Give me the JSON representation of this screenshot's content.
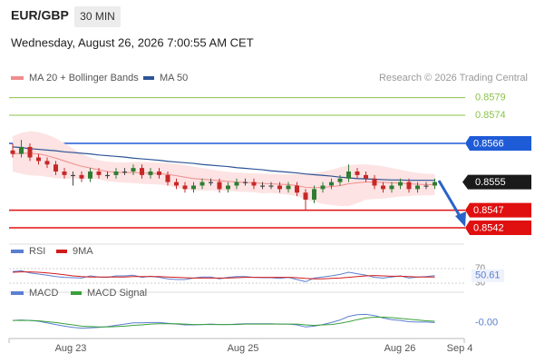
{
  "header": {
    "symbol": "EUR/GBP",
    "timeframe": "30 MIN",
    "timestamp": "Wednesday, August 26, 2026 7:00:55 AM CET",
    "source": "Research © 2026 Trading Central"
  },
  "x_labels": [
    "Aug 23",
    "Aug 25",
    "Aug 26",
    "Sep 4"
  ],
  "chart_data": [
    {
      "type": "candlestick",
      "ylim": [
        0.8538,
        0.8582
      ],
      "up_color": "#2e7d32",
      "down_color": "#c62828",
      "candles": {
        "open": [
          0.8564,
          0.8563,
          0.8565,
          0.8562,
          0.8561,
          0.856,
          0.8558,
          0.8557,
          0.8557,
          0.8556,
          0.8558,
          0.8557,
          0.8557,
          0.8558,
          0.8558,
          0.8559,
          0.8557,
          0.8558,
          0.8557,
          0.8555,
          0.8554,
          0.8553,
          0.8554,
          0.8555,
          0.8555,
          0.8553,
          0.8554,
          0.8555,
          0.8555,
          0.8554,
          0.8554,
          0.8554,
          0.8553,
          0.8554,
          0.8552,
          0.855,
          0.8553,
          0.8554,
          0.8555,
          0.8556,
          0.8558,
          0.8557,
          0.8556,
          0.8554,
          0.8553,
          0.8554,
          0.8555,
          0.8553,
          0.8554,
          0.8554
        ],
        "high": [
          0.8566,
          0.8567,
          0.8566,
          0.8563,
          0.8562,
          0.8561,
          0.8559,
          0.8558,
          0.8558,
          0.8559,
          0.8559,
          0.8558,
          0.8559,
          0.8559,
          0.856,
          0.856,
          0.8559,
          0.8559,
          0.8558,
          0.8556,
          0.8555,
          0.8555,
          0.8556,
          0.8556,
          0.8556,
          0.8555,
          0.8556,
          0.8556,
          0.8556,
          0.8555,
          0.8555,
          0.8555,
          0.8555,
          0.8555,
          0.8553,
          0.8554,
          0.8555,
          0.8556,
          0.8557,
          0.856,
          0.8559,
          0.8558,
          0.8557,
          0.8555,
          0.8555,
          0.8556,
          0.8556,
          0.8555,
          0.8555,
          0.8556
        ],
        "low": [
          0.8562,
          0.8562,
          0.8561,
          0.856,
          0.8559,
          0.8557,
          0.8556,
          0.8554,
          0.8555,
          0.8555,
          0.8556,
          0.8556,
          0.8556,
          0.8557,
          0.8557,
          0.8556,
          0.8556,
          0.8556,
          0.8554,
          0.8553,
          0.8552,
          0.8552,
          0.8553,
          0.8554,
          0.8552,
          0.8552,
          0.8553,
          0.8554,
          0.8553,
          0.8553,
          0.8553,
          0.8552,
          0.8552,
          0.8551,
          0.8547,
          0.8549,
          0.8552,
          0.8553,
          0.8554,
          0.8555,
          0.8556,
          0.8555,
          0.8553,
          0.8552,
          0.8552,
          0.8553,
          0.8552,
          0.8552,
          0.8553,
          0.8553
        ],
        "close": [
          0.8563,
          0.8565,
          0.8562,
          0.8561,
          0.856,
          0.8558,
          0.8557,
          0.8557,
          0.8556,
          0.8558,
          0.8557,
          0.8557,
          0.8558,
          0.8558,
          0.8559,
          0.8557,
          0.8558,
          0.8557,
          0.8555,
          0.8554,
          0.8553,
          0.8554,
          0.8555,
          0.8555,
          0.8553,
          0.8554,
          0.8555,
          0.8555,
          0.8554,
          0.8554,
          0.8554,
          0.8553,
          0.8554,
          0.8552,
          0.855,
          0.8553,
          0.8554,
          0.8555,
          0.8556,
          0.8558,
          0.8557,
          0.8556,
          0.8554,
          0.8553,
          0.8554,
          0.8555,
          0.8553,
          0.8554,
          0.8554,
          0.8555
        ]
      },
      "overlays": [
        {
          "name": "MA 20 + Bollinger Bands",
          "color": "#f08c8c",
          "band_color": "#fde3e3",
          "values": [
            0.8563,
            0.85632,
            0.85632,
            0.8563,
            0.85625,
            0.85618,
            0.8561,
            0.85602,
            0.85595,
            0.8559,
            0.85585,
            0.8558,
            0.85578,
            0.85577,
            0.85577,
            0.85576,
            0.85575,
            0.85574,
            0.85572,
            0.85568,
            0.85564,
            0.8556,
            0.85558,
            0.85556,
            0.85554,
            0.85552,
            0.8555,
            0.85549,
            0.85548,
            0.85546,
            0.85545,
            0.85544,
            0.85543,
            0.8554,
            0.85535,
            0.85534,
            0.85535,
            0.85537,
            0.8554,
            0.85545,
            0.85548,
            0.8555,
            0.8555,
            0.85549,
            0.85548,
            0.85547,
            0.85545,
            0.85544,
            0.85543,
            0.85543
          ],
          "upper": [
            0.8568,
            0.8569,
            0.85695,
            0.85692,
            0.85685,
            0.85675,
            0.8566,
            0.85645,
            0.8563,
            0.8562,
            0.85612,
            0.85608,
            0.85606,
            0.85606,
            0.85607,
            0.85607,
            0.85606,
            0.85605,
            0.85604,
            0.85602,
            0.85598,
            0.85594,
            0.8559,
            0.85586,
            0.85582,
            0.85579,
            0.85577,
            0.85576,
            0.85575,
            0.85574,
            0.85573,
            0.85572,
            0.85572,
            0.85573,
            0.85574,
            0.85576,
            0.8558,
            0.85585,
            0.85592,
            0.85598,
            0.856,
            0.856,
            0.85598,
            0.85595,
            0.8559,
            0.85585,
            0.8558,
            0.85576,
            0.85574,
            0.85573
          ],
          "lower": [
            0.8558,
            0.85574,
            0.85569,
            0.85568,
            0.85565,
            0.85561,
            0.8556,
            0.85559,
            0.8556,
            0.8556,
            0.85558,
            0.85552,
            0.8555,
            0.85548,
            0.85547,
            0.85545,
            0.85544,
            0.85543,
            0.8554,
            0.85534,
            0.8553,
            0.85526,
            0.85526,
            0.85526,
            0.85526,
            0.85525,
            0.85523,
            0.85522,
            0.85521,
            0.85518,
            0.85519,
            0.85516,
            0.85514,
            0.8551,
            0.855,
            0.85494,
            0.85488,
            0.85485,
            0.85482,
            0.85482,
            0.8549,
            0.855,
            0.85502,
            0.85503,
            0.85506,
            0.85509,
            0.8551,
            0.85512,
            0.85512,
            0.85513
          ]
        },
        {
          "name": "MA 50",
          "color": "#2d5596",
          "values": [
            0.8565,
            0.85648,
            0.85645,
            0.85643,
            0.85641,
            0.85639,
            0.85636,
            0.85634,
            0.85632,
            0.8563,
            0.85627,
            0.85625,
            0.85623,
            0.85621,
            0.85618,
            0.85616,
            0.85614,
            0.85612,
            0.85609,
            0.85607,
            0.85605,
            0.85603,
            0.856,
            0.85598,
            0.85596,
            0.85594,
            0.85591,
            0.85589,
            0.85587,
            0.85585,
            0.85582,
            0.8558,
            0.85578,
            0.85576,
            0.85573,
            0.85571,
            0.85569,
            0.85567,
            0.85564,
            0.85562,
            0.8556,
            0.85559,
            0.85558,
            0.85557,
            0.85556,
            0.85556,
            0.85555,
            0.85555,
            0.85555,
            0.85555
          ]
        }
      ],
      "levels": [
        {
          "value": 0.8579,
          "color": "#8bc34a",
          "label_style": "text"
        },
        {
          "value": 0.8574,
          "color": "#8bc34a",
          "label_style": "text"
        },
        {
          "value": 0.8566,
          "color": "#1e5bd7",
          "label_style": "box"
        },
        {
          "value": 0.8547,
          "color": "#e01010",
          "label_style": "box"
        },
        {
          "value": 0.8542,
          "color": "#e01010",
          "label_style": "box"
        }
      ],
      "current_color": "#1a1a1a"
    },
    {
      "type": "line",
      "ylim": [
        15,
        85
      ],
      "yticks": [
        70,
        30
      ],
      "series": [
        {
          "name": "RSI",
          "color": "#5b7fd0",
          "values": [
            62,
            64,
            58,
            55,
            52,
            48,
            46,
            45,
            44,
            50,
            47,
            46,
            50,
            50,
            52,
            46,
            49,
            46,
            42,
            40,
            40,
            44,
            47,
            47,
            42,
            46,
            48,
            48,
            46,
            45,
            45,
            43,
            46,
            40,
            34,
            44,
            47,
            50,
            54,
            60,
            56,
            52,
            46,
            44,
            47,
            50,
            44,
            47,
            48,
            50.61
          ]
        },
        {
          "name": "9MA",
          "color": "#d01c1c",
          "values": [
            60,
            61,
            61,
            60,
            58,
            56,
            53,
            50,
            48,
            47,
            47,
            47,
            47,
            47,
            48,
            48,
            48,
            48,
            47,
            46,
            45,
            44,
            44,
            44,
            44,
            44,
            45,
            46,
            46,
            46,
            46,
            46,
            46,
            45,
            43,
            42,
            42,
            43,
            44,
            46,
            48,
            50,
            51,
            50,
            49,
            49,
            48,
            47,
            47,
            47
          ]
        }
      ]
    },
    {
      "type": "line",
      "ylim": [
        -0.0004,
        0.0004
      ],
      "series": [
        {
          "name": "MACD",
          "color": "#5b7fd0",
          "values": [
            2e-05,
            3e-05,
            2e-05,
            0.0,
            -4e-05,
            -8e-05,
            -0.00012,
            -0.00015,
            -0.00017,
            -0.00016,
            -0.00015,
            -0.00013,
            -0.0001,
            -7e-05,
            -4e-05,
            -4e-05,
            -3e-05,
            -3e-05,
            -5e-05,
            -7e-05,
            -9e-05,
            -9e-05,
            -8e-05,
            -7e-05,
            -8e-05,
            -8e-05,
            -7e-05,
            -6e-05,
            -6e-05,
            -6e-05,
            -6e-05,
            -7e-05,
            -7e-05,
            -9e-05,
            -0.00014,
            -0.00012,
            -8e-05,
            -3e-05,
            3e-05,
            0.00012,
            0.00016,
            0.00017,
            0.00014,
            8e-05,
            4e-05,
            2e-05,
            -1e-05,
            -2e-05,
            -2e-05,
            -3e-05
          ]
        },
        {
          "name": "MACD Signal",
          "color": "#3aa03a",
          "values": [
            2e-05,
            2e-05,
            2e-05,
            1e-05,
            -1e-05,
            -3e-05,
            -6e-05,
            -9e-05,
            -0.00012,
            -0.00013,
            -0.00014,
            -0.00014,
            -0.00013,
            -0.00012,
            -0.0001,
            -9e-05,
            -7e-05,
            -6e-05,
            -6e-05,
            -6e-05,
            -7e-05,
            -8e-05,
            -8e-05,
            -8e-05,
            -8e-05,
            -8e-05,
            -8e-05,
            -7e-05,
            -7e-05,
            -7e-05,
            -7e-05,
            -7e-05,
            -7e-05,
            -7e-05,
            -9e-05,
            -0.0001,
            -9e-05,
            -8e-05,
            -5e-05,
            -1e-05,
            4e-05,
            8e-05,
            0.0001,
            0.0001,
            9e-05,
            7e-05,
            5e-05,
            3e-05,
            1e-05,
            0.0
          ]
        }
      ],
      "current": {
        "value": -3e-05,
        "label": "-0.00"
      }
    }
  ]
}
